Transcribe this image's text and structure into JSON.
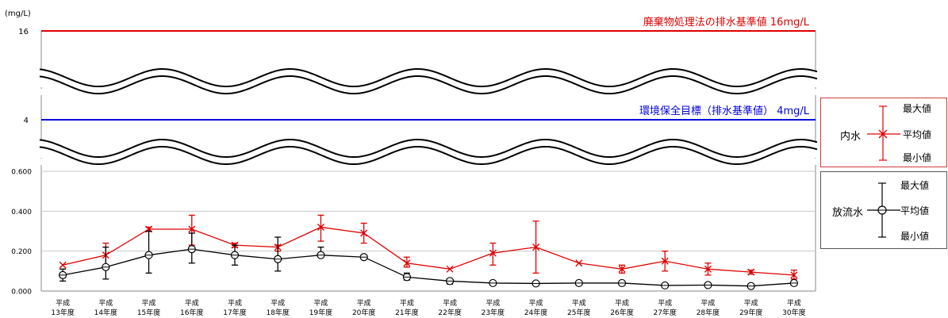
{
  "chart_data": {
    "type": "line",
    "ylabel": "(mg/L)",
    "ytick_labels": [
      "0.000",
      "0.200",
      "0.400",
      "0.600"
    ],
    "ylim": [
      0,
      0.6
    ],
    "break_tick_labels": [
      "4",
      "16"
    ],
    "categories": [
      [
        "平成",
        "13年度"
      ],
      [
        "平成",
        "14年度"
      ],
      [
        "平成",
        "15年度"
      ],
      [
        "平成",
        "16年度"
      ],
      [
        "平成",
        "17年度"
      ],
      [
        "平成",
        "18年度"
      ],
      [
        "平成",
        "19年度"
      ],
      [
        "平成",
        "20年度"
      ],
      [
        "平成",
        "21年度"
      ],
      [
        "平成",
        "22年度"
      ],
      [
        "平成",
        "23年度"
      ],
      [
        "平成",
        "24年度"
      ],
      [
        "平成",
        "25年度"
      ],
      [
        "平成",
        "26年度"
      ],
      [
        "平成",
        "27年度"
      ],
      [
        "平成",
        "28年度"
      ],
      [
        "平成",
        "29年度"
      ],
      [
        "平成",
        "30年度"
      ]
    ],
    "reference_lines": [
      {
        "label": "廃棄物処理法の排水基準値 16mg/L",
        "value": 16,
        "color": "#e00000"
      },
      {
        "label": "環境保全目標（排水基準値） 4mg/L",
        "value": 4,
        "color": "#0000e0"
      }
    ],
    "series": [
      {
        "name": "内水",
        "color": "#e00000",
        "marker": "x",
        "avg": [
          0.13,
          0.18,
          0.31,
          0.31,
          0.23,
          0.22,
          0.32,
          0.29,
          0.14,
          0.11,
          0.19,
          0.22,
          0.14,
          0.11,
          0.15,
          0.11,
          0.095,
          0.08
        ],
        "max": [
          null,
          0.24,
          0.32,
          0.38,
          0.24,
          0.23,
          0.38,
          0.34,
          0.17,
          null,
          0.24,
          0.35,
          null,
          0.13,
          0.2,
          0.14,
          0.105,
          0.105
        ],
        "min": [
          null,
          0.12,
          0.3,
          0.23,
          0.22,
          0.2,
          0.25,
          0.24,
          0.12,
          null,
          0.13,
          0.09,
          null,
          0.09,
          0.1,
          0.08,
          0.085,
          0.06
        ]
      },
      {
        "name": "放流水",
        "color": "#000000",
        "marker": "o",
        "avg": [
          0.08,
          0.12,
          0.18,
          0.21,
          0.18,
          0.16,
          0.18,
          0.17,
          0.07,
          0.05,
          0.04,
          0.038,
          0.04,
          0.04,
          0.028,
          0.03,
          0.025,
          0.04
        ],
        "max": [
          0.11,
          0.22,
          0.3,
          0.29,
          0.23,
          0.27,
          0.22,
          null,
          0.09,
          0.06,
          null,
          null,
          null,
          0.05,
          null,
          null,
          0.035,
          0.05
        ],
        "min": [
          0.05,
          0.06,
          0.09,
          0.14,
          0.13,
          0.1,
          0.17,
          null,
          0.055,
          0.035,
          null,
          null,
          null,
          0.03,
          null,
          null,
          0.015,
          0.03
        ]
      }
    ]
  },
  "legend": {
    "inner": {
      "title": "内水",
      "max": "最大値",
      "avg": "平均値",
      "min": "最小値"
    },
    "outer": {
      "title": "放流水",
      "max": "最大値",
      "avg": "平均値",
      "min": "最小値"
    }
  },
  "colors": {
    "grid": "#c8c8c8",
    "axis": "#888888"
  }
}
